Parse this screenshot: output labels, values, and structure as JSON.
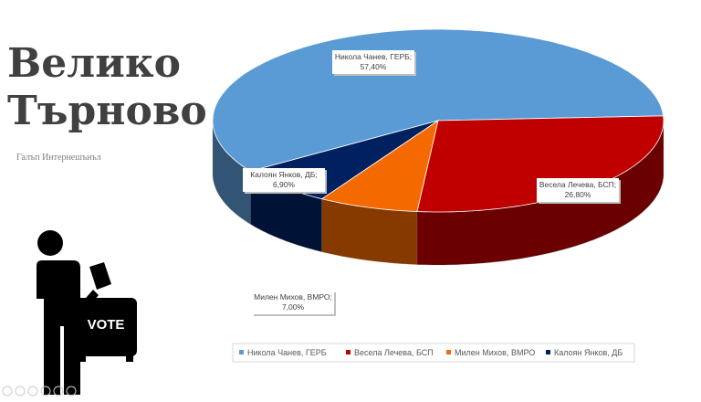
{
  "chart_data": {
    "type": "pie3d",
    "title": [
      "Велико",
      "Търново"
    ],
    "subtitle": "Галъп Интернешънъл",
    "categories": [
      "Никола Чанев, ГЕРБ",
      "Калоян Янков, ДБ",
      "Милен Михов, ВМРО",
      "Весела Лечева, БСП"
    ],
    "values": [
      57.4,
      6.9,
      7.0,
      26.8
    ],
    "value_labels": [
      "57,40%",
      "6,90%",
      "7,00%",
      "26,80%"
    ],
    "label_names": [
      "Никола Чанев, ГЕРБ;",
      "Калоян Янков, ДБ;",
      "Милен Михов, ВМРО;",
      "Весела Лечева, БСП;"
    ],
    "colors": [
      "#5b9bd5",
      "#002060",
      "#f56a00",
      "#c00000"
    ],
    "legend_order": [
      0,
      3,
      2,
      1
    ],
    "legend": "bottom"
  },
  "icon_text": "VOTE"
}
